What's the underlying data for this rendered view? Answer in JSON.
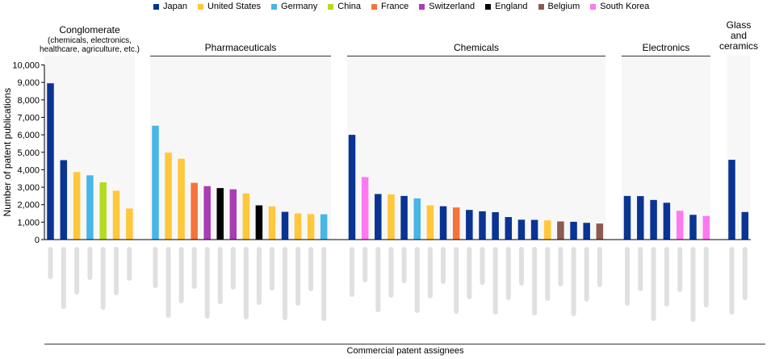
{
  "legend": [
    {
      "name": "Japan",
      "color": "#0a3494"
    },
    {
      "name": "United States",
      "color": "#ffc73a"
    },
    {
      "name": "Germany",
      "color": "#46b6e6"
    },
    {
      "name": "China",
      "color": "#b4dc1e"
    },
    {
      "name": "France",
      "color": "#f5733a"
    },
    {
      "name": "Switzerland",
      "color": "#aa3cb4"
    },
    {
      "name": "England",
      "color": "#000000"
    },
    {
      "name": "Belgium",
      "color": "#8c5a50"
    },
    {
      "name": "South Korea",
      "color": "#ff78f0"
    }
  ],
  "chart_data": {
    "type": "bar",
    "ylabel": "Number of patent publications",
    "xlabel": "Commercial patent assignees",
    "ylim": [
      0,
      10000
    ],
    "yticks": [
      "0",
      "1,000",
      "2,000",
      "3,000",
      "4,000",
      "5,000",
      "6,000",
      "7,000",
      "8,000",
      "9,000",
      "10,000"
    ],
    "tick_values": [
      0,
      1000,
      2000,
      3000,
      4000,
      5000,
      6000,
      7000,
      8000,
      9000,
      10000
    ],
    "grid": false,
    "category_labels_legible": false,
    "groups": [
      {
        "name_lines": [
          "Conglomerate",
          "(chemicals, electronics,",
          "healthcare, agriculture, etc.)"
        ],
        "bars": [
          {
            "value": 8950,
            "country": "Japan"
          },
          {
            "value": 4550,
            "country": "Japan"
          },
          {
            "value": 3870,
            "country": "United States"
          },
          {
            "value": 3680,
            "country": "Germany"
          },
          {
            "value": 3280,
            "country": "China"
          },
          {
            "value": 2800,
            "country": "United States"
          },
          {
            "value": 1780,
            "country": "United States"
          }
        ]
      },
      {
        "name_lines": [
          "Pharmaceuticals"
        ],
        "bars": [
          {
            "value": 6520,
            "country": "Germany"
          },
          {
            "value": 4980,
            "country": "United States"
          },
          {
            "value": 4630,
            "country": "United States"
          },
          {
            "value": 3250,
            "country": "France"
          },
          {
            "value": 3060,
            "country": "Switzerland"
          },
          {
            "value": 2950,
            "country": "England"
          },
          {
            "value": 2880,
            "country": "Switzerland"
          },
          {
            "value": 2640,
            "country": "United States"
          },
          {
            "value": 1960,
            "country": "England"
          },
          {
            "value": 1900,
            "country": "United States"
          },
          {
            "value": 1590,
            "country": "Japan"
          },
          {
            "value": 1500,
            "country": "United States"
          },
          {
            "value": 1460,
            "country": "United States"
          },
          {
            "value": 1450,
            "country": "Germany"
          }
        ]
      },
      {
        "name_lines": [
          "Chemicals"
        ],
        "bars": [
          {
            "value": 6000,
            "country": "Japan"
          },
          {
            "value": 3580,
            "country": "South Korea"
          },
          {
            "value": 2610,
            "country": "Japan"
          },
          {
            "value": 2590,
            "country": "United States"
          },
          {
            "value": 2500,
            "country": "Japan"
          },
          {
            "value": 2360,
            "country": "Germany"
          },
          {
            "value": 1960,
            "country": "United States"
          },
          {
            "value": 1910,
            "country": "Japan"
          },
          {
            "value": 1840,
            "country": "France"
          },
          {
            "value": 1700,
            "country": "Japan"
          },
          {
            "value": 1620,
            "country": "Japan"
          },
          {
            "value": 1570,
            "country": "Japan"
          },
          {
            "value": 1290,
            "country": "Japan"
          },
          {
            "value": 1140,
            "country": "Japan"
          },
          {
            "value": 1130,
            "country": "Japan"
          },
          {
            "value": 1100,
            "country": "United States"
          },
          {
            "value": 1040,
            "country": "Belgium"
          },
          {
            "value": 1020,
            "country": "Japan"
          },
          {
            "value": 960,
            "country": "Japan"
          },
          {
            "value": 920,
            "country": "Belgium"
          }
        ]
      },
      {
        "name_lines": [
          "Electronics"
        ],
        "bars": [
          {
            "value": 2500,
            "country": "Japan"
          },
          {
            "value": 2490,
            "country": "Japan"
          },
          {
            "value": 2270,
            "country": "Japan"
          },
          {
            "value": 2110,
            "country": "Japan"
          },
          {
            "value": 1650,
            "country": "South Korea"
          },
          {
            "value": 1420,
            "country": "Japan"
          },
          {
            "value": 1350,
            "country": "South Korea"
          }
        ]
      },
      {
        "name_lines": [
          "Glass",
          "and",
          "ceramics"
        ],
        "bars": [
          {
            "value": 4570,
            "country": "Japan"
          },
          {
            "value": 1580,
            "country": "Japan"
          }
        ]
      }
    ]
  }
}
